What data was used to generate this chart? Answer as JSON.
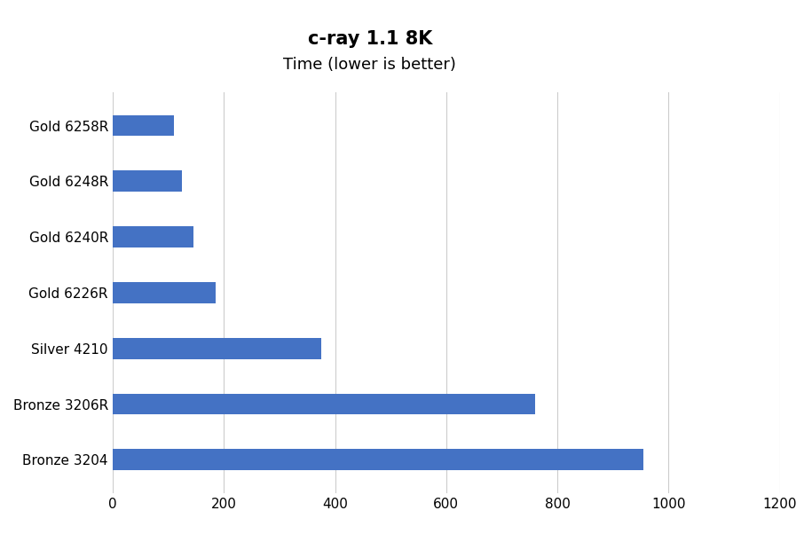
{
  "title": "c-ray 1.1 8K",
  "subtitle": "Time (lower is better)",
  "categories": [
    "Bronze 3204",
    "Bronze 3206R",
    "Silver 4210",
    "Gold 6226R",
    "Gold 6240R",
    "Gold 6248R",
    "Gold 6258R"
  ],
  "values": [
    955,
    760,
    375,
    185,
    145,
    125,
    110
  ],
  "bar_color": "#4472C4",
  "xlim": [
    0,
    1200
  ],
  "xticks": [
    0,
    200,
    400,
    600,
    800,
    1000,
    1200
  ],
  "title_fontsize": 15,
  "subtitle_fontsize": 13,
  "tick_label_fontsize": 11,
  "background_color": "#ffffff",
  "grid_color": "#cccccc",
  "title_fontweight": "bold",
  "bar_height": 0.38
}
